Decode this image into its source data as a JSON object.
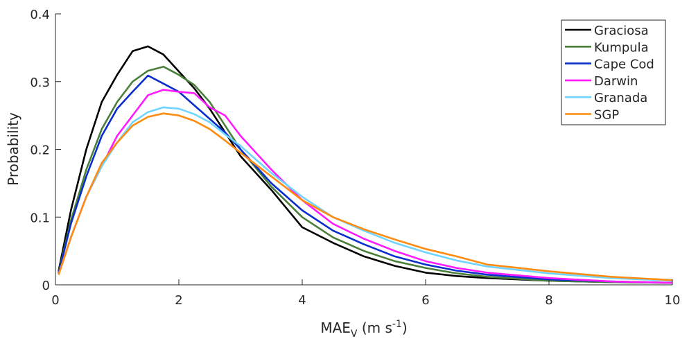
{
  "chart_data": {
    "type": "line",
    "title": "",
    "xlabel": {
      "main": "MAE",
      "sub": "V",
      "units_pre": " (m s",
      "units_sup": "-1",
      "units_post": ")"
    },
    "ylabel": "Probability",
    "xlim": [
      0,
      10
    ],
    "ylim": [
      0,
      0.4
    ],
    "xticks": [
      "0",
      "2",
      "4",
      "6",
      "8",
      "10"
    ],
    "yticks": [
      "0",
      "0.1",
      "0.2",
      "0.3",
      "0.4"
    ],
    "grid": false,
    "legend_position": "top-right",
    "x": [
      0.05,
      0.25,
      0.5,
      0.75,
      1,
      1.25,
      1.5,
      1.75,
      2,
      2.25,
      2.5,
      2.75,
      3,
      3.5,
      4,
      4.5,
      5,
      5.5,
      6,
      6.5,
      7,
      8,
      9,
      10
    ],
    "series": [
      {
        "name": "Graciosa",
        "color": "#000000",
        "values": [
          0.02,
          0.11,
          0.2,
          0.27,
          0.31,
          0.345,
          0.352,
          0.34,
          0.315,
          0.29,
          0.26,
          0.225,
          0.19,
          0.14,
          0.085,
          0.062,
          0.042,
          0.028,
          0.018,
          0.013,
          0.01,
          0.006,
          0.004,
          0.003
        ]
      },
      {
        "name": "Kumpula",
        "color": "#4a7f3a",
        "values": [
          0.018,
          0.095,
          0.17,
          0.23,
          0.27,
          0.3,
          0.316,
          0.322,
          0.31,
          0.295,
          0.27,
          0.235,
          0.2,
          0.145,
          0.1,
          0.07,
          0.05,
          0.035,
          0.025,
          0.017,
          0.012,
          0.006,
          0.004,
          0.003
        ]
      },
      {
        "name": "Cape Cod",
        "color": "#0a2ecc",
        "values": [
          0.017,
          0.09,
          0.16,
          0.22,
          0.26,
          0.285,
          0.309,
          0.297,
          0.285,
          0.265,
          0.245,
          0.225,
          0.2,
          0.15,
          0.11,
          0.08,
          0.06,
          0.042,
          0.03,
          0.021,
          0.015,
          0.008,
          0.005,
          0.003
        ]
      },
      {
        "name": "Darwin",
        "color": "#ff1aff",
        "values": [
          0.015,
          0.07,
          0.13,
          0.175,
          0.22,
          0.25,
          0.28,
          0.288,
          0.285,
          0.283,
          0.262,
          0.25,
          0.22,
          0.17,
          0.125,
          0.09,
          0.068,
          0.05,
          0.035,
          0.025,
          0.018,
          0.01,
          0.005,
          0.003
        ]
      },
      {
        "name": "Granada",
        "color": "#6fd4ff",
        "values": [
          0.015,
          0.07,
          0.13,
          0.175,
          0.21,
          0.24,
          0.255,
          0.262,
          0.26,
          0.252,
          0.24,
          0.222,
          0.205,
          0.165,
          0.13,
          0.1,
          0.08,
          0.062,
          0.048,
          0.036,
          0.027,
          0.017,
          0.01,
          0.006
        ]
      },
      {
        "name": "SGP",
        "color": "#ff8c10",
        "values": [
          0.015,
          0.07,
          0.13,
          0.18,
          0.21,
          0.235,
          0.248,
          0.253,
          0.25,
          0.242,
          0.23,
          0.213,
          0.195,
          0.16,
          0.125,
          0.1,
          0.082,
          0.067,
          0.053,
          0.042,
          0.03,
          0.02,
          0.012,
          0.007
        ]
      }
    ]
  }
}
